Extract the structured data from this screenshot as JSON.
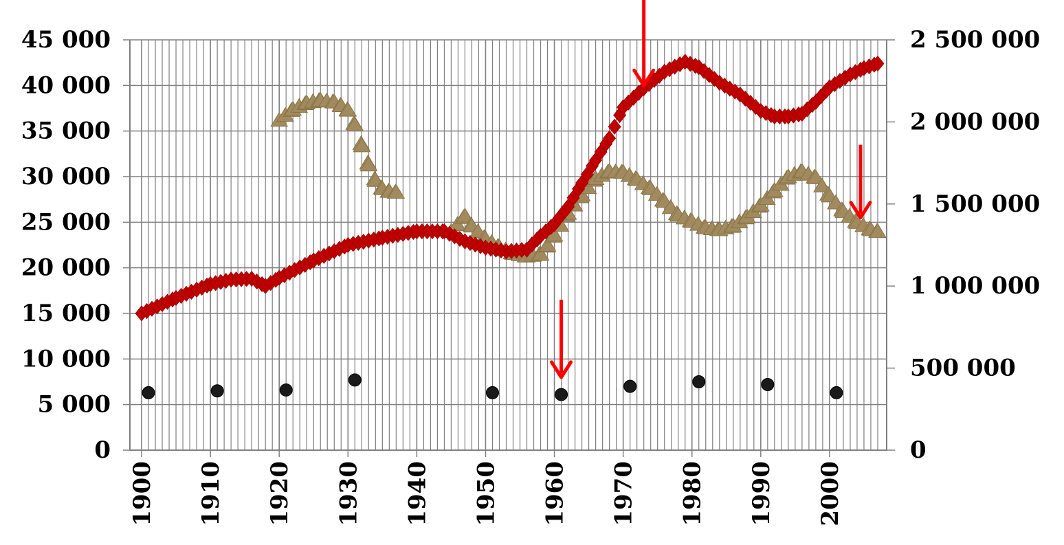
{
  "chart_data": {
    "type": "line",
    "title": "",
    "xlabel": "",
    "ylabel": "",
    "y2label": "",
    "x_range": [
      1900,
      2007
    ],
    "ylim": [
      0,
      45000
    ],
    "y2lim": [
      0,
      2500000
    ],
    "grid": true,
    "legend": "none",
    "x_tick_labels": [
      "1900",
      "1910",
      "1920",
      "1930",
      "1940",
      "1950",
      "1960",
      "1970",
      "1980",
      "1990",
      "2000"
    ],
    "y_tick_labels": [
      "0",
      "5 000",
      "10 000",
      "15 000",
      "20 000",
      "25 000",
      "30 000",
      "35 000",
      "40 000",
      "45 000"
    ],
    "y2_tick_labels": [
      "0",
      "500 000",
      "1 000 000",
      "1 500 000",
      "2 000 000",
      "2 500 000"
    ],
    "colors": {
      "red_series": "#c00000",
      "tan_series": "#a08a5e",
      "dots": "#1a1a1a",
      "arrows": "#ff0000",
      "grid": "#808080"
    },
    "series": [
      {
        "marker": "diamond",
        "axis": "left",
        "color": "#c00000",
        "points": [
          [
            1900,
            15000
          ],
          [
            1905,
            16700
          ],
          [
            1910,
            18200
          ],
          [
            1913,
            18700
          ],
          [
            1916,
            18800
          ],
          [
            1918,
            18000
          ],
          [
            1920,
            18900
          ],
          [
            1925,
            20800
          ],
          [
            1930,
            22500
          ],
          [
            1935,
            23300
          ],
          [
            1940,
            24000
          ],
          [
            1944,
            24000
          ],
          [
            1947,
            22900
          ],
          [
            1950,
            22200
          ],
          [
            1953,
            21800
          ],
          [
            1956,
            22000
          ],
          [
            1958,
            23500
          ],
          [
            1960,
            24800
          ],
          [
            1962,
            26700
          ],
          [
            1964,
            29300
          ],
          [
            1966,
            31800
          ],
          [
            1968,
            34200
          ],
          [
            1970,
            37600
          ],
          [
            1973,
            39700
          ],
          [
            1976,
            41500
          ],
          [
            1979,
            42600
          ],
          [
            1981,
            42000
          ],
          [
            1984,
            40300
          ],
          [
            1987,
            39000
          ],
          [
            1990,
            37200
          ],
          [
            1992,
            36600
          ],
          [
            1994,
            36600
          ],
          [
            1996,
            36900
          ],
          [
            1998,
            38200
          ],
          [
            2000,
            39800
          ],
          [
            2003,
            41200
          ],
          [
            2005,
            41900
          ],
          [
            2007,
            42400
          ]
        ]
      },
      {
        "marker": "triangle",
        "axis": "left",
        "segments": [
          [
            [
              1920,
              36200
            ],
            [
              1922,
              37400
            ],
            [
              1924,
              38100
            ],
            [
              1926,
              38400
            ],
            [
              1928,
              38200
            ],
            [
              1929,
              37800
            ],
            [
              1930,
              37300
            ],
            [
              1931,
              35700
            ],
            [
              1932,
              33400
            ],
            [
              1933,
              31300
            ],
            [
              1934,
              29600
            ],
            [
              1935,
              28700
            ],
            [
              1936,
              28400
            ],
            [
              1937,
              28300
            ]
          ],
          [
            [
              1945,
              24000
            ],
            [
              1947,
              25700
            ],
            [
              1948,
              24600
            ],
            [
              1950,
              23200
            ],
            [
              1952,
              22300
            ],
            [
              1954,
              21600
            ],
            [
              1956,
              21300
            ],
            [
              1958,
              21500
            ],
            [
              1959,
              22500
            ],
            [
              1960,
              23600
            ],
            [
              1962,
              26000
            ],
            [
              1964,
              28000
            ],
            [
              1966,
              29800
            ],
            [
              1968,
              30600
            ],
            [
              1970,
              30500
            ],
            [
              1972,
              29700
            ],
            [
              1974,
              28700
            ],
            [
              1976,
              27300
            ],
            [
              1978,
              25800
            ],
            [
              1980,
              25100
            ],
            [
              1982,
              24400
            ],
            [
              1984,
              24200
            ],
            [
              1986,
              24600
            ],
            [
              1988,
              25600
            ],
            [
              1990,
              26900
            ],
            [
              1992,
              28500
            ],
            [
              1994,
              30000
            ],
            [
              1996,
              30600
            ],
            [
              1998,
              29900
            ],
            [
              2000,
              27900
            ],
            [
              2002,
              26200
            ],
            [
              2004,
              25000
            ],
            [
              2006,
              24200
            ],
            [
              2007,
              24000
            ]
          ]
        ]
      },
      {
        "marker": "circle",
        "axis": "left",
        "points": [
          [
            1901,
            6300
          ],
          [
            1911,
            6500
          ],
          [
            1921,
            6600
          ],
          [
            1931,
            7700
          ],
          [
            1951,
            6300
          ],
          [
            1961,
            6100
          ],
          [
            1971,
            7000
          ],
          [
            1981,
            7500
          ],
          [
            1991,
            7200
          ],
          [
            2001,
            6300
          ]
        ]
      }
    ],
    "annotations": [
      {
        "type": "arrow",
        "x": 1973,
        "y_from": 50000,
        "y_to": 40000
      },
      {
        "type": "arrow",
        "x": 1961,
        "y_from": 16500,
        "y_to": 8000
      },
      {
        "type": "arrow",
        "x": 2004.5,
        "y_from": 33500,
        "y_to": 25500
      }
    ]
  }
}
